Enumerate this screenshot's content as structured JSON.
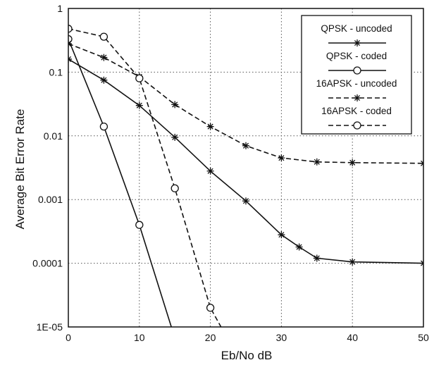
{
  "chart_data": {
    "type": "line",
    "title": "",
    "xlabel": "Eb/No dB",
    "ylabel": "Average Bit Error Rate",
    "xlim": [
      0,
      50
    ],
    "ylim": [
      1e-05,
      1
    ],
    "yscale": "log",
    "grid": true,
    "legend_position": "top-right",
    "x_ticks": [
      0,
      10,
      20,
      30,
      40,
      50
    ],
    "x_tick_labels": [
      "0",
      "10",
      "20",
      "30",
      "40",
      "50"
    ],
    "y_ticks": [
      1,
      0.1,
      0.01,
      0.001,
      0.0001,
      1e-05
    ],
    "y_tick_labels": [
      "1",
      "0.1",
      "0.01",
      "0.001",
      "0.0001",
      "1E-05"
    ],
    "series": [
      {
        "name": "QPSK - uncoded",
        "line_style": "solid",
        "marker": "star",
        "color": "#111111",
        "x": [
          0,
          5,
          10,
          15,
          20,
          25,
          30,
          32.5,
          35,
          40,
          50
        ],
        "y": [
          0.16,
          0.075,
          0.03,
          0.0095,
          0.0028,
          0.00095,
          0.00028,
          0.00018,
          0.00012,
          0.000105,
          0.0001
        ]
      },
      {
        "name": "QPSK - coded",
        "line_style": "solid",
        "marker": "circle",
        "color": "#111111",
        "x": [
          0,
          5,
          10,
          14.5
        ],
        "y": [
          0.33,
          0.014,
          0.0004,
          1e-05
        ]
      },
      {
        "name": "16APSK - uncoded",
        "line_style": "dashed",
        "marker": "star",
        "color": "#111111",
        "x": [
          0,
          5,
          10,
          15,
          20,
          25,
          30,
          35,
          40,
          50
        ],
        "y": [
          0.28,
          0.17,
          0.085,
          0.031,
          0.014,
          0.007,
          0.0045,
          0.0039,
          0.0038,
          0.0037
        ]
      },
      {
        "name": "16APSK - coded",
        "line_style": "dashed",
        "marker": "circle",
        "color": "#111111",
        "x": [
          0,
          5,
          10,
          15,
          20,
          21.5
        ],
        "y": [
          0.48,
          0.36,
          0.08,
          0.0015,
          2e-05,
          1e-05
        ]
      }
    ]
  }
}
